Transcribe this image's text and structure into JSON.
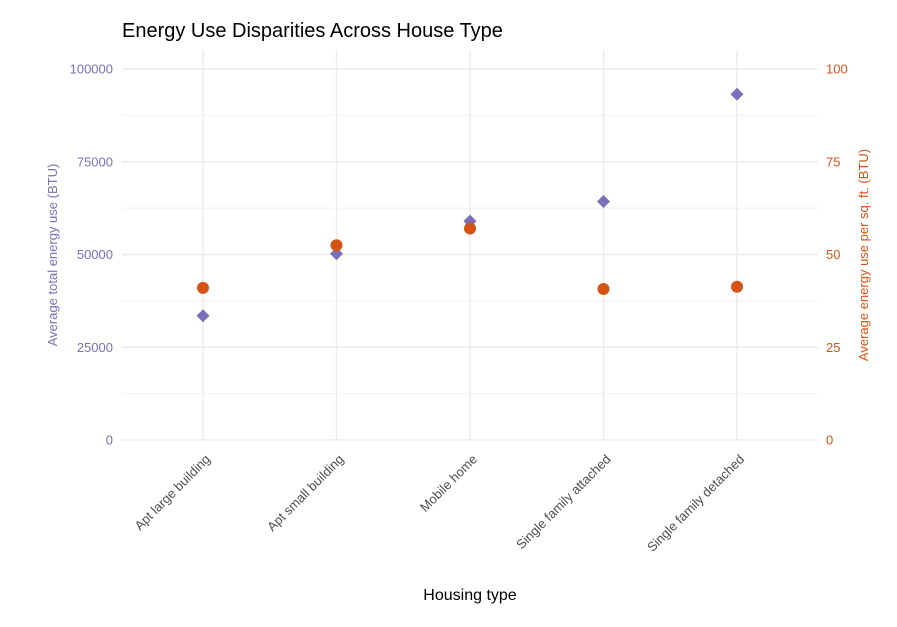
{
  "chart_data": {
    "type": "scatter",
    "title": "Energy Use Disparities Across House Type",
    "xlabel": "Housing type",
    "ylabel": "Average total energy use (BTU)",
    "y2label": "Average energy use per sq. ft. (BTU)",
    "categories": [
      "Apt large building",
      "Apt small building",
      "Mobile home",
      "Single family attached",
      "Single family detached"
    ],
    "ylim": [
      0,
      100000
    ],
    "y2lim": [
      0,
      100
    ],
    "yticks": [
      "0",
      "25000",
      "50000",
      "75000",
      "100000"
    ],
    "y2ticks": [
      "0",
      "25",
      "50",
      "75",
      "100"
    ],
    "grid": true,
    "series": [
      {
        "axis": "left",
        "marker": "diamond",
        "color": "#7b6fb8",
        "values": [
          33500,
          50200,
          59000,
          64300,
          93200
        ]
      },
      {
        "axis": "right",
        "marker": "circle",
        "color": "#d65316",
        "values": [
          41,
          52.5,
          57,
          40.7,
          41.3
        ]
      }
    ]
  }
}
